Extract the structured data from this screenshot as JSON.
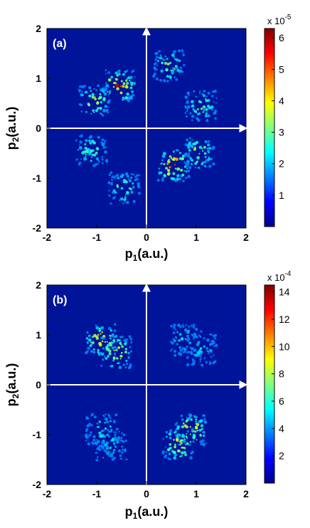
{
  "chart_data": [
    {
      "type": "heatmap",
      "panel_label": "(a)",
      "xlabel_main": "p",
      "xlabel_sub": "1",
      "xlabel_unit": "(a.u.)",
      "ylabel_main": "p",
      "ylabel_sub": "2",
      "ylabel_unit": "(a.u.)",
      "xlim": [
        -2,
        2
      ],
      "ylim": [
        -2,
        2
      ],
      "xticks": [
        "-2",
        "-1",
        "0",
        "1",
        "2"
      ],
      "yticks": [
        "-2",
        "-1",
        "0",
        "1",
        "2"
      ],
      "colorbar": {
        "scale_prefix": "x 10",
        "scale_exp": "-5",
        "range": [
          0,
          6.3
        ],
        "ticks": [
          "1",
          "2",
          "3",
          "4",
          "5",
          "6"
        ],
        "tick_values": [
          1,
          2,
          3,
          4,
          5,
          6
        ]
      },
      "clusters": [
        {
          "p1": -0.55,
          "p2": 0.85,
          "intensity": 0.9
        },
        {
          "p1": -1.05,
          "p2": 0.55,
          "intensity": 0.6
        },
        {
          "p1": 0.45,
          "p2": 1.25,
          "intensity": 0.5
        },
        {
          "p1": 1.1,
          "p2": 0.45,
          "intensity": 0.45
        },
        {
          "p1": 0.55,
          "p2": -0.75,
          "intensity": 0.9
        },
        {
          "p1": 1.05,
          "p2": -0.5,
          "intensity": 0.6
        },
        {
          "p1": -1.1,
          "p2": -0.45,
          "intensity": 0.45
        },
        {
          "p1": -0.45,
          "p2": -1.2,
          "intensity": 0.5
        }
      ]
    },
    {
      "type": "heatmap",
      "panel_label": "(b)",
      "xlabel_main": "p",
      "xlabel_sub": "1",
      "xlabel_unit": "(a.u.)",
      "ylabel_main": "p",
      "ylabel_sub": "2",
      "ylabel_unit": "(a.u.)",
      "xlim": [
        -2,
        2
      ],
      "ylim": [
        -2,
        2
      ],
      "xticks": [
        "-2",
        "-1",
        "0",
        "1",
        "2"
      ],
      "yticks": [
        "-2",
        "-1",
        "0",
        "1",
        "2"
      ],
      "colorbar": {
        "scale_prefix": "x 10",
        "scale_exp": "-4",
        "range": [
          0,
          14.5
        ],
        "ticks": [
          "2",
          "4",
          "6",
          "8",
          "10",
          "12",
          "14"
        ],
        "tick_values": [
          2,
          4,
          6,
          8,
          10,
          12,
          14
        ]
      },
      "clusters": [
        {
          "p1": -0.9,
          "p2": 0.9,
          "intensity": 0.75
        },
        {
          "p1": -0.6,
          "p2": 0.65,
          "intensity": 0.7
        },
        {
          "p1": 0.8,
          "p2": 0.9,
          "intensity": 0.35
        },
        {
          "p1": 1.1,
          "p2": 0.7,
          "intensity": 0.3
        },
        {
          "p1": 0.9,
          "p2": -0.9,
          "intensity": 0.75
        },
        {
          "p1": 0.65,
          "p2": -1.2,
          "intensity": 0.7
        },
        {
          "p1": -0.9,
          "p2": -0.9,
          "intensity": 0.35
        },
        {
          "p1": -0.7,
          "p2": -1.2,
          "intensity": 0.3
        }
      ]
    }
  ]
}
